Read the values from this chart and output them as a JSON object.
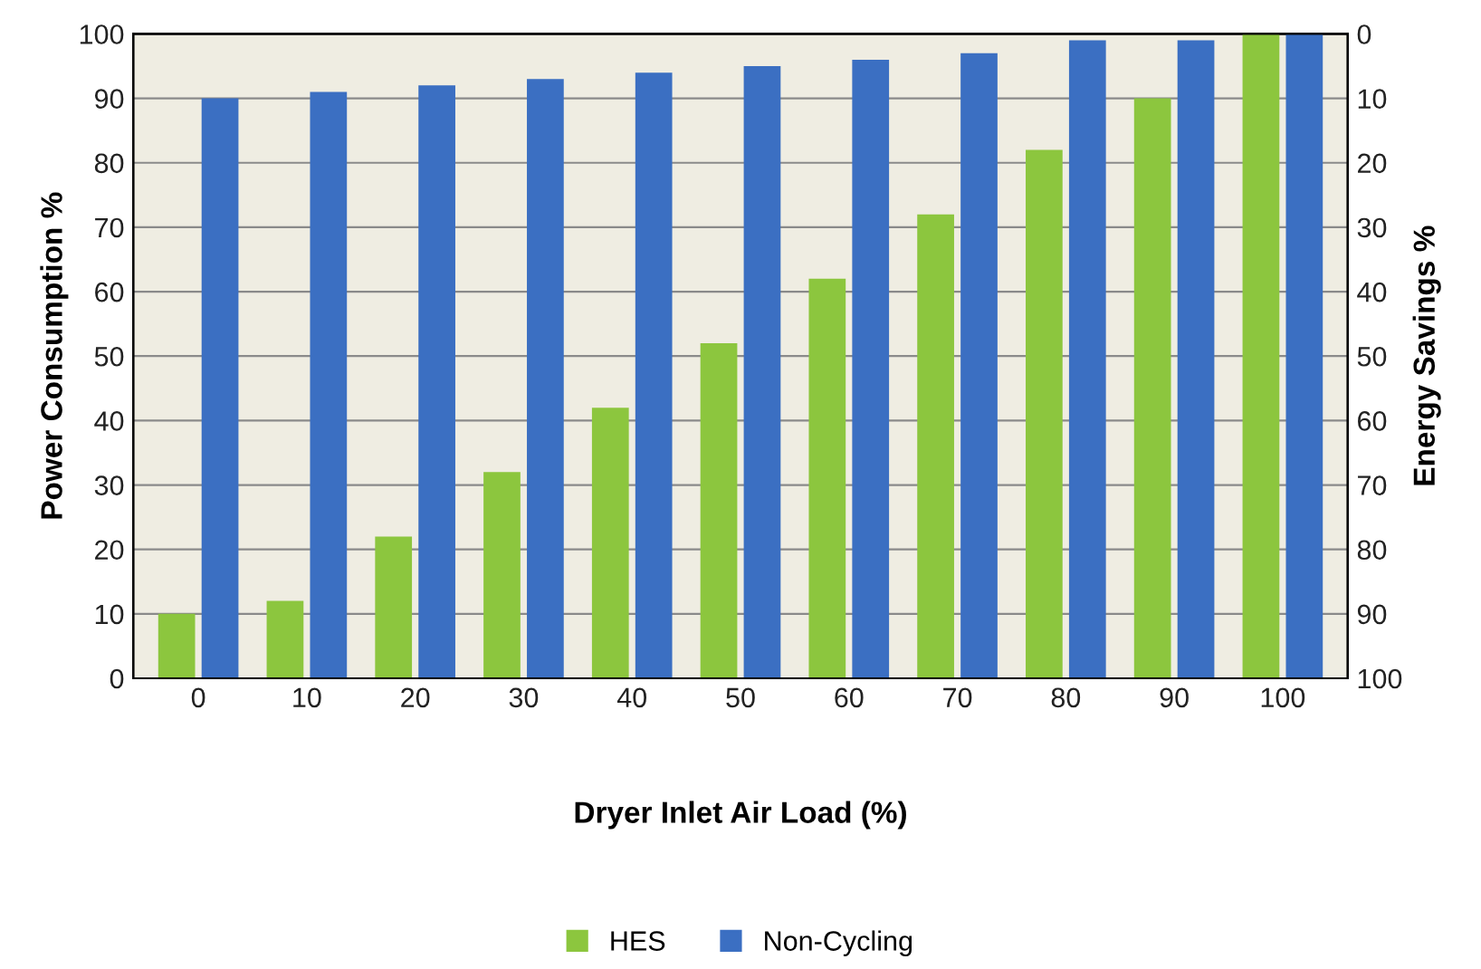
{
  "chart_data": {
    "type": "bar",
    "xlabel": "Dryer Inlet Air Load (%)",
    "ylabel": "Power Consumption %",
    "y2label": "Energy Savings %",
    "categories": [
      "0",
      "10",
      "20",
      "30",
      "40",
      "50",
      "60",
      "70",
      "80",
      "90",
      "100"
    ],
    "series": [
      {
        "name": "HES",
        "color": "#8cc63e",
        "values": [
          10,
          12,
          22,
          32,
          42,
          52,
          62,
          72,
          82,
          90,
          100
        ]
      },
      {
        "name": "Non-Cycling",
        "color": "#3b6fc2",
        "values": [
          90,
          91,
          92,
          93,
          94,
          95,
          96,
          97,
          99,
          99,
          100
        ]
      }
    ],
    "ylim": [
      0,
      100
    ],
    "yticks": [
      0,
      10,
      20,
      30,
      40,
      50,
      60,
      70,
      80,
      90,
      100
    ],
    "y2lim": [
      100,
      0
    ],
    "y2ticks": [
      0,
      10,
      20,
      30,
      40,
      50,
      60,
      70,
      80,
      90,
      100
    ],
    "grid": "y",
    "legend": "bottom"
  }
}
